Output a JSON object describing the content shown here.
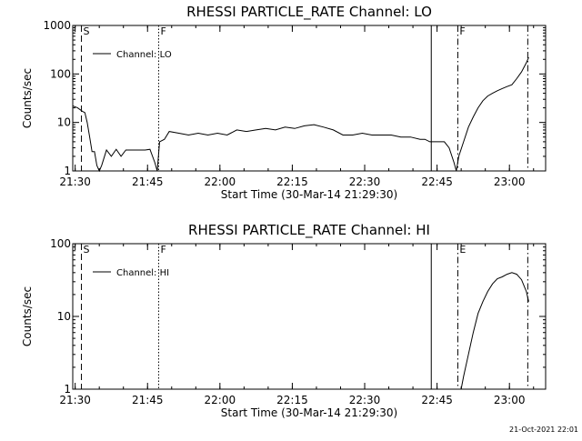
{
  "footer": {
    "timestamp": "21-Oct-2021 22:01"
  },
  "chart_data": [
    {
      "type": "line",
      "title": "RHESSI PARTICLE_RATE Channel: LO",
      "xlabel": "Start Time (30-Mar-14 21:29:30)",
      "ylabel": "Counts/sec",
      "yscale": "log",
      "xlim": [
        0,
        98
      ],
      "ylim": [
        1,
        1000
      ],
      "x_tick_positions": [
        0.5,
        15.5,
        30.5,
        45.5,
        60.5,
        75.5,
        90.5
      ],
      "x_ticks": [
        "21:30",
        "21:45",
        "22:00",
        "22:15",
        "22:30",
        "22:45",
        "23:00"
      ],
      "y_ticks": [
        1,
        10,
        100,
        1000
      ],
      "y_tick_labels": [
        "1",
        "10",
        "100",
        "1000"
      ],
      "legend": {
        "label": "Channel: LO",
        "position": "top-left"
      },
      "markers": [
        {
          "x": 1.8,
          "style": "dashed",
          "label": "S"
        },
        {
          "x": 17.8,
          "style": "dotted",
          "label": "F"
        },
        {
          "x": 74.3,
          "style": "solid",
          "label": ""
        },
        {
          "x": 79.8,
          "style": "dashdot",
          "label": "F"
        },
        {
          "x": 94.3,
          "style": "dashdot",
          "label": ""
        }
      ],
      "series": [
        {
          "name": "Channel: LO",
          "x": [
            0,
            1,
            2,
            2.5,
            3,
            3.5,
            4,
            4.5,
            5,
            5.5,
            6,
            7,
            8,
            9,
            10,
            11,
            12,
            13,
            14,
            15,
            16,
            17,
            17.5,
            18,
            19,
            20,
            22,
            24,
            26,
            28,
            30,
            32,
            34,
            36,
            38,
            40,
            42,
            44,
            46,
            48,
            50,
            52,
            54,
            56,
            58,
            60,
            62,
            64,
            66,
            68,
            70,
            72,
            73,
            74,
            75,
            76,
            77,
            78,
            79,
            79.5,
            80,
            81,
            82,
            83,
            84,
            85,
            86,
            87,
            88,
            89,
            90,
            91,
            92,
            93,
            94,
            94.5
          ],
          "y": [
            22,
            20,
            17,
            16,
            10,
            5,
            2.5,
            2.5,
            1.3,
            1,
            1.3,
            2.7,
            2,
            2.8,
            2,
            2.7,
            2.7,
            2.7,
            2.7,
            2.7,
            2.8,
            1.5,
            1,
            4,
            4.5,
            6.5,
            6,
            5.5,
            6,
            5.5,
            6,
            5.5,
            7,
            6.5,
            7,
            7.5,
            7,
            8,
            7.5,
            8.5,
            9,
            8,
            7,
            5.5,
            5.5,
            6,
            5.5,
            5.5,
            5.5,
            5,
            5,
            4.5,
            4.5,
            4,
            4,
            4,
            4,
            3,
            1.5,
            1,
            2,
            4,
            8,
            13,
            20,
            28,
            35,
            40,
            45,
            50,
            55,
            60,
            80,
            110,
            170,
            220
          ]
        }
      ]
    },
    {
      "type": "line",
      "title": "RHESSI PARTICLE_RATE Channel: HI",
      "xlabel": "Start Time (30-Mar-14 21:29:30)",
      "ylabel": "Counts/sec",
      "yscale": "log",
      "xlim": [
        0,
        98
      ],
      "ylim": [
        1,
        100
      ],
      "x_tick_positions": [
        0.5,
        15.5,
        30.5,
        45.5,
        60.5,
        75.5,
        90.5
      ],
      "x_ticks": [
        "21:30",
        "21:45",
        "22:00",
        "22:15",
        "22:30",
        "22:45",
        "23:00"
      ],
      "y_ticks": [
        1,
        10,
        100
      ],
      "y_tick_labels": [
        "1",
        "10",
        "100"
      ],
      "legend": {
        "label": "Channel: HI",
        "position": "top-left"
      },
      "markers": [
        {
          "x": 1.8,
          "style": "dashed",
          "label": "S"
        },
        {
          "x": 17.8,
          "style": "dotted",
          "label": "F"
        },
        {
          "x": 74.3,
          "style": "solid",
          "label": ""
        },
        {
          "x": 79.8,
          "style": "dashdot",
          "label": "E"
        },
        {
          "x": 94.3,
          "style": "dashdot",
          "label": ""
        }
      ],
      "series": [
        {
          "name": "Channel: HI",
          "x": [
            80.5,
            81,
            82,
            83,
            84,
            85,
            86,
            87,
            88,
            89,
            90,
            91,
            92,
            93,
            94,
            94.5
          ],
          "y": [
            1,
            1.5,
            3,
            6,
            11,
            16,
            22,
            28,
            33,
            35,
            38,
            40,
            38,
            32,
            22,
            16
          ]
        }
      ]
    }
  ]
}
